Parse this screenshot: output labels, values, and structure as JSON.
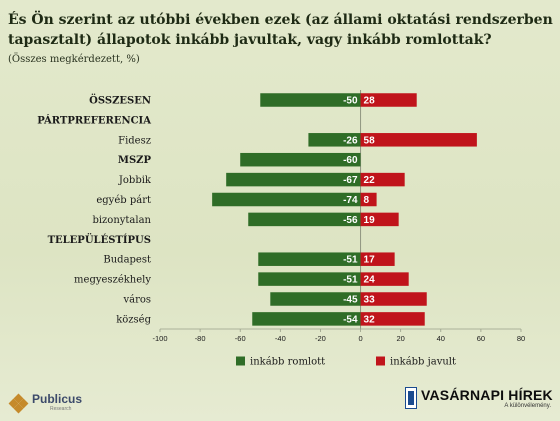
{
  "header": {
    "title": "És Ön szerint az utóbbi években ezek (az állami oktatási rendszerben tapasztalt) állapotok inkább javultak, vagy inkább romlottak?",
    "subtitle": "(Összes megkérdezett, %)"
  },
  "chart_data": {
    "type": "bar",
    "orientation": "horizontal",
    "categories": [
      "ÖSSZESEN",
      "PÁRTPREFERENCIA",
      "Fidesz",
      "MSZP",
      "Jobbik",
      "egyéb párt",
      "bizonytalan",
      "TELEPÜLÉSTÍPUS",
      "Budapest",
      "megyeszékhely",
      "város",
      "község"
    ],
    "bold_categories": [
      "ÖSSZESEN",
      "PÁRTPREFERENCIA",
      "MSZP",
      "TELEPÜLÉSTÍPUS"
    ],
    "series": [
      {
        "name": "inkább romlott",
        "color": "#2f6d27",
        "values": [
          -50,
          null,
          -26,
          -60,
          -67,
          -74,
          -56,
          null,
          -51,
          -51,
          -45,
          -54
        ]
      },
      {
        "name": "inkább javult",
        "color": "#c0141b",
        "values": [
          28,
          null,
          58,
          null,
          22,
          8,
          19,
          null,
          17,
          24,
          33,
          32
        ]
      }
    ],
    "x_ticks": [
      -100,
      -80,
      -60,
      -40,
      -20,
      0,
      20,
      40,
      60,
      80
    ],
    "xlim": [
      -100,
      80
    ],
    "grid": false,
    "legend_position": "bottom"
  },
  "logos": {
    "left": {
      "name": "Publicus",
      "sub": "Research"
    },
    "right": {
      "name": "VASÁRNAPI HÍREK",
      "tag": "A különvélemény."
    }
  }
}
